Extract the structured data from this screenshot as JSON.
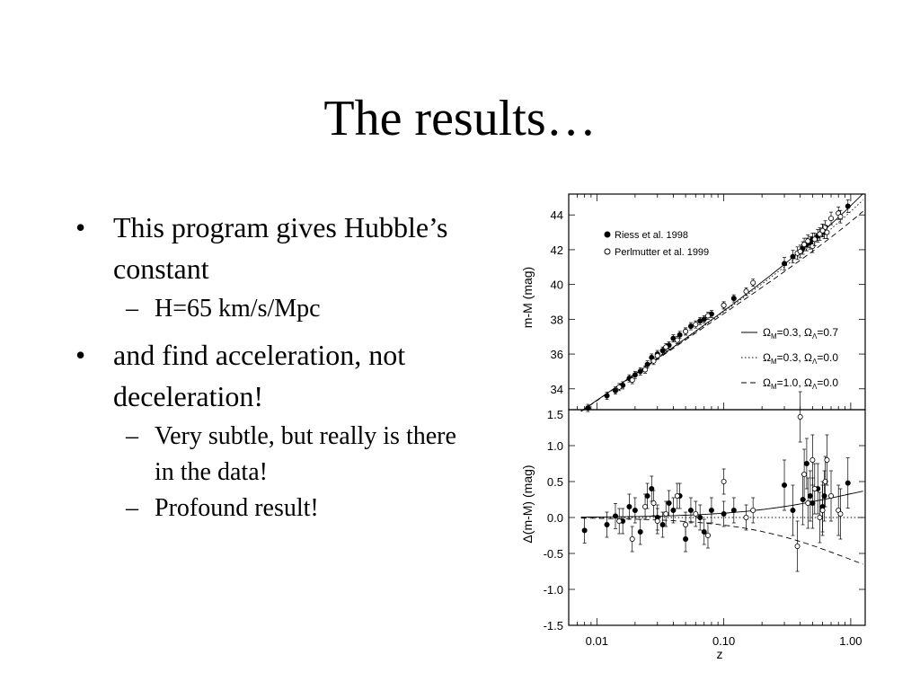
{
  "title": "The results…",
  "bullets": [
    {
      "text": "This program gives Hubble’s constant",
      "sub": [
        "H=65 km/s/Mpc"
      ]
    },
    {
      "text": "and find acceleration, not deceleration!",
      "sub": [
        "Very subtle, but really is there in the data!",
        "Profound result!"
      ]
    }
  ],
  "markers": {
    "bullet": "•",
    "dash": "–"
  },
  "chart_data": [
    {
      "type": "scatter",
      "panel": "top",
      "ylabel": "m-M (mag)",
      "xlabel": "",
      "xscale": "log",
      "xlim": [
        0.006,
        1.3
      ],
      "ylim": [
        32.8,
        45.2
      ],
      "yticks": [
        "34",
        "36",
        "38",
        "40",
        "42",
        "44"
      ],
      "legend_placement": "top-left",
      "models_legend_placement": "bottom-right",
      "series": [
        {
          "name": "Riess et al. 1998",
          "marker": "filled",
          "x": [
            0.0085,
            0.012,
            0.014,
            0.016,
            0.018,
            0.02,
            0.022,
            0.025,
            0.027,
            0.03,
            0.033,
            0.037,
            0.04,
            0.045,
            0.05,
            0.055,
            0.065,
            0.07,
            0.08,
            0.1,
            0.12,
            0.3,
            0.35,
            0.42,
            0.45,
            0.48,
            0.5,
            0.55,
            0.6,
            0.62,
            0.95
          ],
          "y": [
            32.9,
            33.6,
            33.9,
            34.2,
            34.6,
            34.8,
            35.0,
            35.4,
            35.8,
            36.0,
            36.2,
            36.5,
            36.9,
            37.1,
            37.3,
            37.6,
            37.9,
            38.0,
            38.3,
            38.8,
            39.2,
            41.2,
            41.6,
            42.1,
            42.3,
            42.4,
            42.6,
            42.8,
            43.1,
            43.0,
            44.5
          ]
        },
        {
          "name": "Perlmutter et al. 1999",
          "marker": "open",
          "x": [
            0.015,
            0.019,
            0.024,
            0.028,
            0.03,
            0.035,
            0.043,
            0.05,
            0.06,
            0.075,
            0.1,
            0.15,
            0.17,
            0.38,
            0.4,
            0.43,
            0.46,
            0.5,
            0.52,
            0.57,
            0.6,
            0.63,
            0.65,
            0.7,
            0.8,
            0.83
          ],
          "y": [
            34.1,
            34.5,
            35.1,
            35.6,
            35.9,
            36.4,
            36.8,
            37.3,
            37.7,
            38.2,
            38.8,
            39.6,
            40.1,
            41.8,
            41.9,
            42.3,
            42.5,
            42.2,
            42.6,
            42.9,
            43.1,
            43.3,
            43.0,
            43.8,
            44.1,
            43.9
          ]
        }
      ],
      "models": [
        {
          "name": "ΩM=0.3, ΩΛ=0.7",
          "label_main1": "Ω",
          "label_sub1": "M",
          "label_mid": "=0.3, Ω",
          "label_sub2": "Λ",
          "label_end": "=0.7",
          "style": "solid"
        },
        {
          "name": "ΩM=0.3, ΩΛ=0.0",
          "label_main1": "Ω",
          "label_sub1": "M",
          "label_mid": "=0.3, Ω",
          "label_sub2": "Λ",
          "label_end": "=0.0",
          "style": "dotted"
        },
        {
          "name": "ΩM=1.0, ΩΛ=0.0",
          "label_main1": "Ω",
          "label_sub1": "M",
          "label_mid": "=1.0, Ω",
          "label_sub2": "Λ",
          "label_end": "=0.0",
          "style": "dashed"
        }
      ]
    },
    {
      "type": "scatter",
      "panel": "bottom",
      "ylabel": "Δ(m-M) (mag)",
      "xlabel": "z",
      "xscale": "log",
      "xlim": [
        0.006,
        1.3
      ],
      "ylim": [
        -1.5,
        1.5
      ],
      "xticks": [
        "0.01",
        "0.10",
        "1.00"
      ],
      "yticks": [
        "1.5",
        "1.0",
        "0.5",
        "0.0",
        "-0.5",
        "-1.0",
        "-1.5"
      ],
      "series": [
        {
          "name": "Riess et al. 1998",
          "marker": "filled",
          "x": [
            0.008,
            0.012,
            0.014,
            0.016,
            0.018,
            0.02,
            0.022,
            0.025,
            0.027,
            0.03,
            0.033,
            0.037,
            0.04,
            0.045,
            0.05,
            0.055,
            0.065,
            0.07,
            0.08,
            0.1,
            0.12,
            0.3,
            0.35,
            0.42,
            0.45,
            0.48,
            0.5,
            0.55,
            0.6,
            0.62,
            0.95
          ],
          "y": [
            -0.18,
            -0.1,
            0.02,
            -0.05,
            0.15,
            0.1,
            -0.2,
            0.3,
            0.4,
            0.0,
            -0.1,
            0.2,
            0.1,
            0.3,
            -0.3,
            0.1,
            0.0,
            -0.2,
            0.1,
            0.05,
            0.1,
            0.45,
            0.1,
            0.25,
            0.75,
            0.3,
            0.2,
            0.4,
            0.15,
            0.3,
            0.48
          ]
        },
        {
          "name": "Perlmutter et al. 1999",
          "marker": "open",
          "x": [
            0.015,
            0.019,
            0.024,
            0.028,
            0.03,
            0.035,
            0.043,
            0.05,
            0.06,
            0.075,
            0.1,
            0.15,
            0.17,
            0.38,
            0.4,
            0.43,
            0.46,
            0.5,
            0.52,
            0.57,
            0.6,
            0.63,
            0.65,
            0.7,
            0.8,
            0.83
          ],
          "y": [
            -0.05,
            -0.3,
            0.15,
            0.2,
            -0.05,
            0.05,
            0.3,
            -0.1,
            0.05,
            -0.25,
            0.5,
            0.0,
            0.1,
            -0.4,
            1.4,
            0.6,
            0.2,
            0.8,
            0.4,
            0.0,
            0.1,
            0.5,
            0.8,
            0.3,
            0.1,
            0.05
          ]
        }
      ]
    }
  ],
  "colors": {
    "ink": "#000000",
    "background": "#ffffff"
  }
}
